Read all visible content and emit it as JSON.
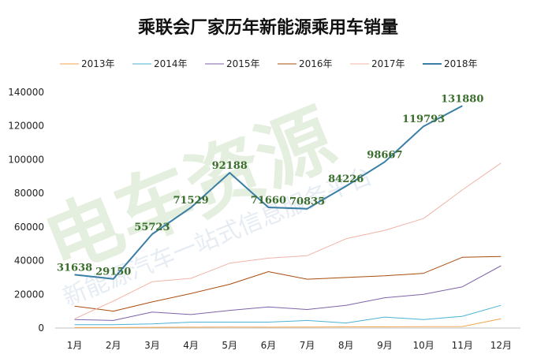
{
  "watermark": {
    "main": "电车资源",
    "sub": "新能源汽车一站式信息服务平台"
  },
  "chart_data": {
    "type": "line",
    "title": "乘联会厂家历年新能源乘用车销量",
    "xlabel": "",
    "ylabel": "",
    "categories": [
      "1月",
      "2月",
      "3月",
      "4月",
      "5月",
      "6月",
      "7月",
      "8月",
      "9月",
      "10月",
      "11月",
      "12月"
    ],
    "ylim": [
      0,
      140000
    ],
    "yticks": [
      0,
      20000,
      40000,
      60000,
      80000,
      100000,
      120000,
      140000
    ],
    "grid": false,
    "legend_position": "top",
    "series": [
      {
        "name": "2013年",
        "color": "#f4a64a",
        "width": 1,
        "values": [
          300,
          300,
          400,
          500,
          600,
          500,
          600,
          700,
          700,
          800,
          900,
          5500
        ]
      },
      {
        "name": "2014年",
        "color": "#4bb3d4",
        "width": 1,
        "values": [
          2000,
          2000,
          2500,
          3500,
          3500,
          3500,
          4500,
          3000,
          6500,
          5000,
          7000,
          13500
        ]
      },
      {
        "name": "2015年",
        "color": "#7f63a8",
        "width": 1,
        "values": [
          5000,
          4500,
          9500,
          8000,
          10500,
          12500,
          11000,
          13500,
          18000,
          20000,
          24500,
          37000
        ]
      },
      {
        "name": "2016年",
        "color": "#a94c0d",
        "width": 1,
        "values": [
          13000,
          10000,
          15500,
          20500,
          26000,
          33500,
          29000,
          30000,
          31000,
          32500,
          42000,
          42500
        ]
      },
      {
        "name": "2017年",
        "color": "#f0b3a8",
        "width": 1,
        "values": [
          5500,
          16000,
          27500,
          29500,
          38500,
          41500,
          43000,
          53000,
          58000,
          65000,
          82000,
          98000
        ]
      },
      {
        "name": "2018年",
        "color": "#3a7ea6",
        "width": 2,
        "values": [
          31638,
          29150,
          55723,
          71529,
          92188,
          71660,
          70835,
          84226,
          98667,
          119793,
          131880,
          null
        ]
      }
    ],
    "data_labels": {
      "series": "2018年",
      "labels": [
        "31638",
        "29150",
        "55723",
        "71529",
        "92188",
        "71660",
        "70835",
        "84226",
        "98667",
        "119793",
        "131880"
      ]
    }
  }
}
